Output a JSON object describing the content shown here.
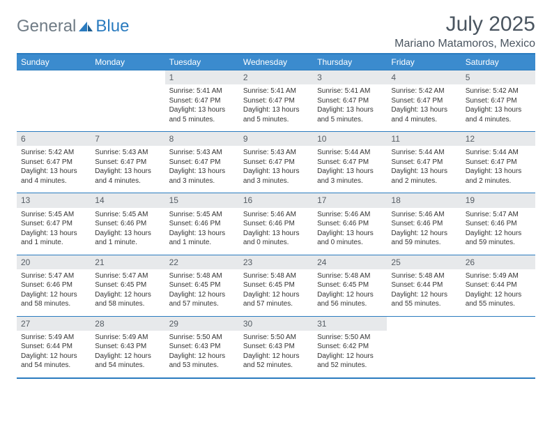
{
  "brand": {
    "part1": "General",
    "part2": "Blue"
  },
  "title": "July 2025",
  "subtitle": "Mariano Matamoros, Mexico",
  "colors": {
    "header_bg": "#3b8bce",
    "border": "#2a7bbf",
    "daynum_bg": "#e7e9eb",
    "text_muted": "#4a5560"
  },
  "dayNames": [
    "Sunday",
    "Monday",
    "Tuesday",
    "Wednesday",
    "Thursday",
    "Friday",
    "Saturday"
  ],
  "weeks": [
    [
      null,
      null,
      {
        "n": "1",
        "sr": "Sunrise: 5:41 AM",
        "ss": "Sunset: 6:47 PM",
        "d1": "Daylight: 13 hours",
        "d2": "and 5 minutes."
      },
      {
        "n": "2",
        "sr": "Sunrise: 5:41 AM",
        "ss": "Sunset: 6:47 PM",
        "d1": "Daylight: 13 hours",
        "d2": "and 5 minutes."
      },
      {
        "n": "3",
        "sr": "Sunrise: 5:41 AM",
        "ss": "Sunset: 6:47 PM",
        "d1": "Daylight: 13 hours",
        "d2": "and 5 minutes."
      },
      {
        "n": "4",
        "sr": "Sunrise: 5:42 AM",
        "ss": "Sunset: 6:47 PM",
        "d1": "Daylight: 13 hours",
        "d2": "and 4 minutes."
      },
      {
        "n": "5",
        "sr": "Sunrise: 5:42 AM",
        "ss": "Sunset: 6:47 PM",
        "d1": "Daylight: 13 hours",
        "d2": "and 4 minutes."
      }
    ],
    [
      {
        "n": "6",
        "sr": "Sunrise: 5:42 AM",
        "ss": "Sunset: 6:47 PM",
        "d1": "Daylight: 13 hours",
        "d2": "and 4 minutes."
      },
      {
        "n": "7",
        "sr": "Sunrise: 5:43 AM",
        "ss": "Sunset: 6:47 PM",
        "d1": "Daylight: 13 hours",
        "d2": "and 4 minutes."
      },
      {
        "n": "8",
        "sr": "Sunrise: 5:43 AM",
        "ss": "Sunset: 6:47 PM",
        "d1": "Daylight: 13 hours",
        "d2": "and 3 minutes."
      },
      {
        "n": "9",
        "sr": "Sunrise: 5:43 AM",
        "ss": "Sunset: 6:47 PM",
        "d1": "Daylight: 13 hours",
        "d2": "and 3 minutes."
      },
      {
        "n": "10",
        "sr": "Sunrise: 5:44 AM",
        "ss": "Sunset: 6:47 PM",
        "d1": "Daylight: 13 hours",
        "d2": "and 3 minutes."
      },
      {
        "n": "11",
        "sr": "Sunrise: 5:44 AM",
        "ss": "Sunset: 6:47 PM",
        "d1": "Daylight: 13 hours",
        "d2": "and 2 minutes."
      },
      {
        "n": "12",
        "sr": "Sunrise: 5:44 AM",
        "ss": "Sunset: 6:47 PM",
        "d1": "Daylight: 13 hours",
        "d2": "and 2 minutes."
      }
    ],
    [
      {
        "n": "13",
        "sr": "Sunrise: 5:45 AM",
        "ss": "Sunset: 6:47 PM",
        "d1": "Daylight: 13 hours",
        "d2": "and 1 minute."
      },
      {
        "n": "14",
        "sr": "Sunrise: 5:45 AM",
        "ss": "Sunset: 6:46 PM",
        "d1": "Daylight: 13 hours",
        "d2": "and 1 minute."
      },
      {
        "n": "15",
        "sr": "Sunrise: 5:45 AM",
        "ss": "Sunset: 6:46 PM",
        "d1": "Daylight: 13 hours",
        "d2": "and 1 minute."
      },
      {
        "n": "16",
        "sr": "Sunrise: 5:46 AM",
        "ss": "Sunset: 6:46 PM",
        "d1": "Daylight: 13 hours",
        "d2": "and 0 minutes."
      },
      {
        "n": "17",
        "sr": "Sunrise: 5:46 AM",
        "ss": "Sunset: 6:46 PM",
        "d1": "Daylight: 13 hours",
        "d2": "and 0 minutes."
      },
      {
        "n": "18",
        "sr": "Sunrise: 5:46 AM",
        "ss": "Sunset: 6:46 PM",
        "d1": "Daylight: 12 hours",
        "d2": "and 59 minutes."
      },
      {
        "n": "19",
        "sr": "Sunrise: 5:47 AM",
        "ss": "Sunset: 6:46 PM",
        "d1": "Daylight: 12 hours",
        "d2": "and 59 minutes."
      }
    ],
    [
      {
        "n": "20",
        "sr": "Sunrise: 5:47 AM",
        "ss": "Sunset: 6:46 PM",
        "d1": "Daylight: 12 hours",
        "d2": "and 58 minutes."
      },
      {
        "n": "21",
        "sr": "Sunrise: 5:47 AM",
        "ss": "Sunset: 6:45 PM",
        "d1": "Daylight: 12 hours",
        "d2": "and 58 minutes."
      },
      {
        "n": "22",
        "sr": "Sunrise: 5:48 AM",
        "ss": "Sunset: 6:45 PM",
        "d1": "Daylight: 12 hours",
        "d2": "and 57 minutes."
      },
      {
        "n": "23",
        "sr": "Sunrise: 5:48 AM",
        "ss": "Sunset: 6:45 PM",
        "d1": "Daylight: 12 hours",
        "d2": "and 57 minutes."
      },
      {
        "n": "24",
        "sr": "Sunrise: 5:48 AM",
        "ss": "Sunset: 6:45 PM",
        "d1": "Daylight: 12 hours",
        "d2": "and 56 minutes."
      },
      {
        "n": "25",
        "sr": "Sunrise: 5:48 AM",
        "ss": "Sunset: 6:44 PM",
        "d1": "Daylight: 12 hours",
        "d2": "and 55 minutes."
      },
      {
        "n": "26",
        "sr": "Sunrise: 5:49 AM",
        "ss": "Sunset: 6:44 PM",
        "d1": "Daylight: 12 hours",
        "d2": "and 55 minutes."
      }
    ],
    [
      {
        "n": "27",
        "sr": "Sunrise: 5:49 AM",
        "ss": "Sunset: 6:44 PM",
        "d1": "Daylight: 12 hours",
        "d2": "and 54 minutes."
      },
      {
        "n": "28",
        "sr": "Sunrise: 5:49 AM",
        "ss": "Sunset: 6:43 PM",
        "d1": "Daylight: 12 hours",
        "d2": "and 54 minutes."
      },
      {
        "n": "29",
        "sr": "Sunrise: 5:50 AM",
        "ss": "Sunset: 6:43 PM",
        "d1": "Daylight: 12 hours",
        "d2": "and 53 minutes."
      },
      {
        "n": "30",
        "sr": "Sunrise: 5:50 AM",
        "ss": "Sunset: 6:43 PM",
        "d1": "Daylight: 12 hours",
        "d2": "and 52 minutes."
      },
      {
        "n": "31",
        "sr": "Sunrise: 5:50 AM",
        "ss": "Sunset: 6:42 PM",
        "d1": "Daylight: 12 hours",
        "d2": "and 52 minutes."
      },
      null,
      null
    ]
  ]
}
